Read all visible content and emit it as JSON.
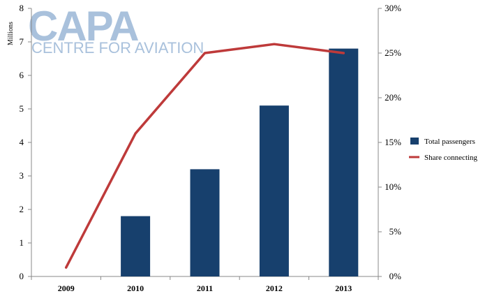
{
  "logo": {
    "main": "CAPA",
    "sub": "CENTRE FOR AVIATION"
  },
  "chart_data": {
    "type": "bar",
    "categories": [
      "2009",
      "2010",
      "2011",
      "2012",
      "2013"
    ],
    "series": [
      {
        "name": "Total passengers",
        "kind": "bar",
        "axis": "left",
        "values": [
          0,
          1.8,
          3.2,
          5.1,
          6.8
        ],
        "color": "#17406d"
      },
      {
        "name": "Share connecting",
        "kind": "line",
        "axis": "right",
        "values": [
          1,
          16,
          25,
          26,
          25
        ],
        "color": "#be3a3a"
      }
    ],
    "ylabel": "Millions",
    "ylim": [
      0,
      8
    ],
    "yticks": [
      "0",
      "1",
      "2",
      "3",
      "4",
      "5",
      "6",
      "7",
      "8"
    ],
    "y2lim": [
      0,
      30
    ],
    "y2ticks": [
      "0%",
      "5%",
      "10%",
      "15%",
      "20%",
      "25%",
      "30%"
    ],
    "legend_position": "right",
    "grid": false
  }
}
